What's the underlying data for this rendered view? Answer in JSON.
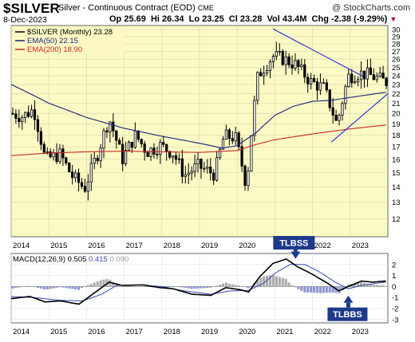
{
  "header": {
    "symbol": "$SILVER",
    "description": "Silver - Continuous Contract (EOD)",
    "exchange": "CME",
    "copyright": "@ StockCharts.com",
    "date": "8-Dec-2023",
    "ohlc_text": "Op 25.69  Hi 26.34  Lo 23.25  Cl 23.28  Vol 43.4M  Chg -2.38 (-9.29%)",
    "change_icon": "down-triangle-icon"
  },
  "colors": {
    "price_bg": "#fbf9c4",
    "macd_bg": "#ffffff",
    "ema50": "#1a237e",
    "ema200": "#c62828",
    "macd_line": "#000000",
    "signal_line": "#3949ab",
    "histogram": "#9e9e9e",
    "trendline": "#1e2bd6",
    "callout": "#1e3a8a"
  },
  "chart_data": [
    {
      "type": "candlestick",
      "name": "price-panel",
      "legend": [
        {
          "label": "$SILVER (Monthly) 23.28",
          "color": "#000000"
        },
        {
          "label": "EMA(50) 22.15",
          "color": "#1a237e"
        },
        {
          "label": "EMA(200) 18.90",
          "color": "#c62828"
        }
      ],
      "x_ticks": [
        "2014",
        "2015",
        "2016",
        "2017",
        "2018",
        "2019",
        "2020",
        "2021",
        "2022",
        "2023"
      ],
      "y_ticks": [
        12,
        13,
        14,
        15,
        16,
        17,
        18,
        19,
        20,
        21,
        22,
        23,
        24,
        25,
        26,
        27,
        28,
        29,
        30
      ],
      "ylim": [
        11,
        30.6
      ],
      "y_scale": "log",
      "x_range": [
        2014.0,
        2024.0
      ],
      "grid": true,
      "close_anchors": [
        {
          "x": 2014.0,
          "y": 20.0
        },
        {
          "x": 2014.3,
          "y": 19.7
        },
        {
          "x": 2014.6,
          "y": 20.4
        },
        {
          "x": 2014.9,
          "y": 16.0
        },
        {
          "x": 2015.3,
          "y": 16.4
        },
        {
          "x": 2015.6,
          "y": 14.8
        },
        {
          "x": 2015.95,
          "y": 13.9
        },
        {
          "x": 2016.3,
          "y": 16.5
        },
        {
          "x": 2016.6,
          "y": 19.5
        },
        {
          "x": 2016.95,
          "y": 16.0
        },
        {
          "x": 2017.3,
          "y": 18.0
        },
        {
          "x": 2017.6,
          "y": 16.6
        },
        {
          "x": 2017.95,
          "y": 17.1
        },
        {
          "x": 2018.3,
          "y": 16.5
        },
        {
          "x": 2018.6,
          "y": 14.8
        },
        {
          "x": 2018.95,
          "y": 15.5
        },
        {
          "x": 2019.4,
          "y": 14.9
        },
        {
          "x": 2019.65,
          "y": 17.9
        },
        {
          "x": 2019.95,
          "y": 17.8
        },
        {
          "x": 2020.25,
          "y": 14.0
        },
        {
          "x": 2020.55,
          "y": 24.0
        },
        {
          "x": 2020.95,
          "y": 26.4
        },
        {
          "x": 2021.2,
          "y": 26.1
        },
        {
          "x": 2021.55,
          "y": 25.3
        },
        {
          "x": 2021.95,
          "y": 23.3
        },
        {
          "x": 2022.3,
          "y": 22.6
        },
        {
          "x": 2022.65,
          "y": 18.9
        },
        {
          "x": 2022.95,
          "y": 23.9
        },
        {
          "x": 2023.25,
          "y": 24.3
        },
        {
          "x": 2023.55,
          "y": 24.0
        },
        {
          "x": 2023.95,
          "y": 23.28
        }
      ],
      "ema50_anchors": [
        {
          "x": 2014.0,
          "y": 23.0
        },
        {
          "x": 2015.0,
          "y": 21.0
        },
        {
          "x": 2016.0,
          "y": 19.6
        },
        {
          "x": 2017.0,
          "y": 18.6
        },
        {
          "x": 2018.0,
          "y": 17.9
        },
        {
          "x": 2019.0,
          "y": 17.3
        },
        {
          "x": 2019.6,
          "y": 16.9
        },
        {
          "x": 2020.0,
          "y": 17.1
        },
        {
          "x": 2020.5,
          "y": 18.2
        },
        {
          "x": 2021.0,
          "y": 19.8
        },
        {
          "x": 2021.5,
          "y": 20.7
        },
        {
          "x": 2022.0,
          "y": 21.2
        },
        {
          "x": 2022.5,
          "y": 21.3
        },
        {
          "x": 2023.0,
          "y": 21.6
        },
        {
          "x": 2023.95,
          "y": 22.15
        }
      ],
      "ema200_anchors": [
        {
          "x": 2014.0,
          "y": 16.3
        },
        {
          "x": 2015.0,
          "y": 16.5
        },
        {
          "x": 2016.0,
          "y": 16.6
        },
        {
          "x": 2017.0,
          "y": 16.65
        },
        {
          "x": 2018.0,
          "y": 16.6
        },
        {
          "x": 2019.0,
          "y": 16.55
        },
        {
          "x": 2020.0,
          "y": 16.7
        },
        {
          "x": 2020.5,
          "y": 17.2
        },
        {
          "x": 2021.0,
          "y": 17.6
        },
        {
          "x": 2022.0,
          "y": 18.1
        },
        {
          "x": 2023.0,
          "y": 18.55
        },
        {
          "x": 2023.95,
          "y": 18.9
        }
      ],
      "trendlines": [
        {
          "name": "upper-trendline",
          "from": {
            "x": 2020.95,
            "y": 30.1
          },
          "to": {
            "x": 2023.35,
            "y": 23.9
          }
        },
        {
          "name": "lower-trendline",
          "from": {
            "x": 2022.5,
            "y": 17.4
          },
          "to": {
            "x": 2024.0,
            "y": 22.0
          }
        }
      ]
    },
    {
      "type": "line",
      "name": "macd-panel",
      "legend": [
        {
          "label": "MACD(12,26,9)",
          "color": "#000000"
        },
        {
          "label": "0.505",
          "color": "#000000"
        },
        {
          "label": "0.415",
          "color": "#3949ab"
        },
        {
          "label": "0.090",
          "color": "#9e9e9e"
        }
      ],
      "x_ticks": [
        "2014",
        "2015",
        "2016",
        "2017",
        "2018",
        "2019",
        "2020",
        "2021",
        "2022",
        "2023"
      ],
      "y_ticks": [
        -3,
        -2,
        -1,
        0,
        1,
        2
      ],
      "ylim": [
        -3.3,
        3.0
      ],
      "grid": true,
      "macd_anchors": [
        {
          "x": 2014.0,
          "y": -1.1
        },
        {
          "x": 2014.5,
          "y": -0.9
        },
        {
          "x": 2014.9,
          "y": -1.4
        },
        {
          "x": 2015.3,
          "y": -1.3
        },
        {
          "x": 2015.8,
          "y": -1.6
        },
        {
          "x": 2016.2,
          "y": -0.6
        },
        {
          "x": 2016.6,
          "y": 0.4
        },
        {
          "x": 2016.95,
          "y": 0.1
        },
        {
          "x": 2017.5,
          "y": 0.15
        },
        {
          "x": 2017.95,
          "y": -0.1
        },
        {
          "x": 2018.3,
          "y": -0.2
        },
        {
          "x": 2018.8,
          "y": -0.7
        },
        {
          "x": 2019.3,
          "y": -0.8
        },
        {
          "x": 2019.7,
          "y": -0.1
        },
        {
          "x": 2020.1,
          "y": -0.3
        },
        {
          "x": 2020.3,
          "y": -0.5
        },
        {
          "x": 2020.6,
          "y": 0.9
        },
        {
          "x": 2020.95,
          "y": 2.1
        },
        {
          "x": 2021.3,
          "y": 2.5
        },
        {
          "x": 2021.6,
          "y": 1.8
        },
        {
          "x": 2021.95,
          "y": 1.2
        },
        {
          "x": 2022.4,
          "y": 0.3
        },
        {
          "x": 2022.7,
          "y": -0.4
        },
        {
          "x": 2022.95,
          "y": 0.0
        },
        {
          "x": 2023.3,
          "y": 0.5
        },
        {
          "x": 2023.6,
          "y": 0.4
        },
        {
          "x": 2023.95,
          "y": 0.505
        }
      ],
      "signal_anchors": [
        {
          "x": 2014.0,
          "y": -0.9
        },
        {
          "x": 2014.6,
          "y": -1.0
        },
        {
          "x": 2015.3,
          "y": -1.25
        },
        {
          "x": 2015.9,
          "y": -1.3
        },
        {
          "x": 2016.4,
          "y": -0.7
        },
        {
          "x": 2016.8,
          "y": 0.1
        },
        {
          "x": 2017.4,
          "y": 0.15
        },
        {
          "x": 2018.0,
          "y": 0.0
        },
        {
          "x": 2018.6,
          "y": -0.4
        },
        {
          "x": 2019.3,
          "y": -0.7
        },
        {
          "x": 2019.8,
          "y": -0.4
        },
        {
          "x": 2020.3,
          "y": -0.35
        },
        {
          "x": 2020.7,
          "y": 0.3
        },
        {
          "x": 2021.0,
          "y": 1.2
        },
        {
          "x": 2021.4,
          "y": 2.0
        },
        {
          "x": 2021.8,
          "y": 2.0
        },
        {
          "x": 2022.2,
          "y": 1.3
        },
        {
          "x": 2022.6,
          "y": 0.4
        },
        {
          "x": 2022.95,
          "y": -0.2
        },
        {
          "x": 2023.3,
          "y": 0.1
        },
        {
          "x": 2023.95,
          "y": 0.415
        }
      ],
      "annotations": [
        {
          "text": "TLBSS",
          "direction": "down",
          "x": 2021.55,
          "y": 2.3
        },
        {
          "text": "TLBBS",
          "direction": "up",
          "x": 2022.95,
          "y": -0.6
        }
      ]
    }
  ]
}
